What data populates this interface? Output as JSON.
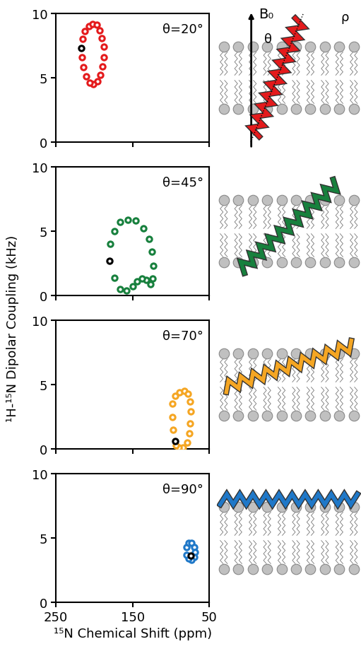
{
  "chart_data": [
    {
      "type": "scatter",
      "annotation": "θ=20°",
      "xlim": [
        250,
        50
      ],
      "xticks": [
        250,
        150,
        50
      ],
      "ylim": [
        0,
        10
      ],
      "yticks": [
        0,
        5,
        10
      ],
      "tick_labels": "y",
      "marker": "o",
      "series": [
        {
          "color": "#e41a1c",
          "x": [
            215,
            212,
            207,
            202,
            197,
            193,
            190,
            188,
            188,
            189,
            192,
            196,
            201,
            206,
            211,
            214,
            216
          ],
          "values": [
            8.0,
            8.6,
            9.0,
            9.2,
            9.1,
            8.7,
            8.1,
            7.4,
            6.6,
            5.9,
            5.2,
            4.7,
            4.5,
            4.6,
            5.1,
            5.8,
            6.6
          ]
        },
        {
          "color": "#000000",
          "x": [
            217
          ],
          "values": [
            7.3
          ]
        }
      ]
    },
    {
      "type": "scatter",
      "annotation": "θ=45°",
      "xlim": [
        250,
        50
      ],
      "xticks": [
        250,
        150,
        50
      ],
      "ylim": [
        0,
        10
      ],
      "yticks": [
        0,
        5,
        10
      ],
      "tick_labels": "y",
      "marker": "o",
      "series": [
        {
          "color": "#17803d",
          "x": [
            179,
            174,
            166,
            156,
            146,
            136,
            129,
            125,
            123,
            124,
            127,
            132,
            138,
            144,
            150,
            158,
            166,
            174
          ],
          "values": [
            4.0,
            5.0,
            5.7,
            5.9,
            5.8,
            5.2,
            4.4,
            3.4,
            2.3,
            1.3,
            0.9,
            1.2,
            1.3,
            1.1,
            0.7,
            0.4,
            0.5,
            1.4
          ]
        },
        {
          "color": "#000000",
          "x": [
            180
          ],
          "values": [
            2.7
          ]
        }
      ]
    },
    {
      "type": "scatter",
      "annotation": "θ=70°",
      "xlim": [
        250,
        50
      ],
      "xticks": [
        250,
        150,
        50
      ],
      "ylim": [
        0,
        10
      ],
      "yticks": [
        0,
        5,
        10
      ],
      "tick_labels": "y",
      "marker": "o",
      "series": [
        {
          "color": "#f5a623",
          "x": [
            97,
            98,
            98,
            95,
            89,
            83,
            78,
            75,
            74,
            75,
            76,
            79,
            84,
            90,
            94
          ],
          "values": [
            1.5,
            2.5,
            3.5,
            4.1,
            4.4,
            4.5,
            4.3,
            3.7,
            2.9,
            2.0,
            1.2,
            0.5,
            0.1,
            0.1,
            0.3
          ]
        },
        {
          "color": "#000000",
          "x": [
            95
          ],
          "values": [
            0.6
          ]
        }
      ]
    },
    {
      "type": "scatter",
      "annotation": "θ=90°",
      "xlim": [
        250,
        50
      ],
      "xticks": [
        250,
        150,
        50
      ],
      "ylim": [
        0,
        10
      ],
      "yticks": [
        0,
        5,
        10
      ],
      "xlabel": "¹⁵N Chemical Shift (ppm)",
      "marker": "o",
      "series": [
        {
          "color": "#1f78c8",
          "x": [
            80,
            77,
            73,
            70,
            69,
            70,
            73,
            77,
            80
          ],
          "values": [
            4.3,
            4.6,
            4.6,
            4.3,
            3.9,
            3.5,
            3.3,
            3.4,
            3.7
          ]
        },
        {
          "color": "#000000",
          "x": [
            74
          ],
          "values": [
            3.6
          ]
        }
      ]
    }
  ],
  "shared_ylabel": "¹H-¹⁵N Dipolar Coupling (kHz)",
  "diagram": {
    "field_label": "B₀",
    "tilt_label": "θ",
    "rotation_label": "ρ"
  }
}
